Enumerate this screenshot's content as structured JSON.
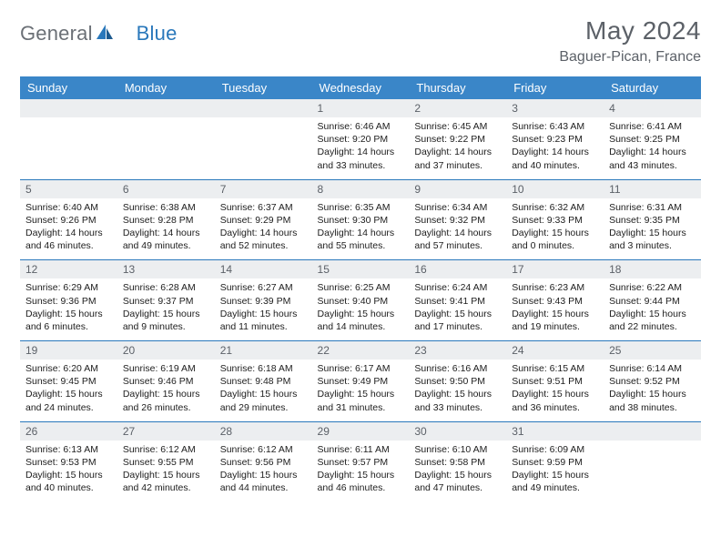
{
  "brand": {
    "part1": "General",
    "part2": "Blue"
  },
  "title": "May 2024",
  "location": "Baguer-Pican, France",
  "colors": {
    "header_bg": "#3a86c8",
    "header_text": "#ffffff",
    "daynum_bg": "#eceef0",
    "daynum_text": "#5c6168",
    "border": "#2a78bb",
    "body_text": "#202020",
    "title_text": "#5c6168",
    "logo_gray": "#6b7076",
    "logo_blue": "#2a78bb"
  },
  "typography": {
    "title_fontsize": 28,
    "location_fontsize": 16,
    "header_fontsize": 13,
    "daynum_fontsize": 12,
    "body_fontsize": 10.5
  },
  "weekdays": [
    "Sunday",
    "Monday",
    "Tuesday",
    "Wednesday",
    "Thursday",
    "Friday",
    "Saturday"
  ],
  "weeks": [
    [
      null,
      null,
      null,
      {
        "n": "1",
        "sunrise": "6:46 AM",
        "sunset": "9:20 PM",
        "dl_h": "14",
        "dl_m": "33"
      },
      {
        "n": "2",
        "sunrise": "6:45 AM",
        "sunset": "9:22 PM",
        "dl_h": "14",
        "dl_m": "37"
      },
      {
        "n": "3",
        "sunrise": "6:43 AM",
        "sunset": "9:23 PM",
        "dl_h": "14",
        "dl_m": "40"
      },
      {
        "n": "4",
        "sunrise": "6:41 AM",
        "sunset": "9:25 PM",
        "dl_h": "14",
        "dl_m": "43"
      }
    ],
    [
      {
        "n": "5",
        "sunrise": "6:40 AM",
        "sunset": "9:26 PM",
        "dl_h": "14",
        "dl_m": "46"
      },
      {
        "n": "6",
        "sunrise": "6:38 AM",
        "sunset": "9:28 PM",
        "dl_h": "14",
        "dl_m": "49"
      },
      {
        "n": "7",
        "sunrise": "6:37 AM",
        "sunset": "9:29 PM",
        "dl_h": "14",
        "dl_m": "52"
      },
      {
        "n": "8",
        "sunrise": "6:35 AM",
        "sunset": "9:30 PM",
        "dl_h": "14",
        "dl_m": "55"
      },
      {
        "n": "9",
        "sunrise": "6:34 AM",
        "sunset": "9:32 PM",
        "dl_h": "14",
        "dl_m": "57"
      },
      {
        "n": "10",
        "sunrise": "6:32 AM",
        "sunset": "9:33 PM",
        "dl_h": "15",
        "dl_m": "0"
      },
      {
        "n": "11",
        "sunrise": "6:31 AM",
        "sunset": "9:35 PM",
        "dl_h": "15",
        "dl_m": "3"
      }
    ],
    [
      {
        "n": "12",
        "sunrise": "6:29 AM",
        "sunset": "9:36 PM",
        "dl_h": "15",
        "dl_m": "6"
      },
      {
        "n": "13",
        "sunrise": "6:28 AM",
        "sunset": "9:37 PM",
        "dl_h": "15",
        "dl_m": "9"
      },
      {
        "n": "14",
        "sunrise": "6:27 AM",
        "sunset": "9:39 PM",
        "dl_h": "15",
        "dl_m": "11"
      },
      {
        "n": "15",
        "sunrise": "6:25 AM",
        "sunset": "9:40 PM",
        "dl_h": "15",
        "dl_m": "14"
      },
      {
        "n": "16",
        "sunrise": "6:24 AM",
        "sunset": "9:41 PM",
        "dl_h": "15",
        "dl_m": "17"
      },
      {
        "n": "17",
        "sunrise": "6:23 AM",
        "sunset": "9:43 PM",
        "dl_h": "15",
        "dl_m": "19"
      },
      {
        "n": "18",
        "sunrise": "6:22 AM",
        "sunset": "9:44 PM",
        "dl_h": "15",
        "dl_m": "22"
      }
    ],
    [
      {
        "n": "19",
        "sunrise": "6:20 AM",
        "sunset": "9:45 PM",
        "dl_h": "15",
        "dl_m": "24"
      },
      {
        "n": "20",
        "sunrise": "6:19 AM",
        "sunset": "9:46 PM",
        "dl_h": "15",
        "dl_m": "26"
      },
      {
        "n": "21",
        "sunrise": "6:18 AM",
        "sunset": "9:48 PM",
        "dl_h": "15",
        "dl_m": "29"
      },
      {
        "n": "22",
        "sunrise": "6:17 AM",
        "sunset": "9:49 PM",
        "dl_h": "15",
        "dl_m": "31"
      },
      {
        "n": "23",
        "sunrise": "6:16 AM",
        "sunset": "9:50 PM",
        "dl_h": "15",
        "dl_m": "33"
      },
      {
        "n": "24",
        "sunrise": "6:15 AM",
        "sunset": "9:51 PM",
        "dl_h": "15",
        "dl_m": "36"
      },
      {
        "n": "25",
        "sunrise": "6:14 AM",
        "sunset": "9:52 PM",
        "dl_h": "15",
        "dl_m": "38"
      }
    ],
    [
      {
        "n": "26",
        "sunrise": "6:13 AM",
        "sunset": "9:53 PM",
        "dl_h": "15",
        "dl_m": "40"
      },
      {
        "n": "27",
        "sunrise": "6:12 AM",
        "sunset": "9:55 PM",
        "dl_h": "15",
        "dl_m": "42"
      },
      {
        "n": "28",
        "sunrise": "6:12 AM",
        "sunset": "9:56 PM",
        "dl_h": "15",
        "dl_m": "44"
      },
      {
        "n": "29",
        "sunrise": "6:11 AM",
        "sunset": "9:57 PM",
        "dl_h": "15",
        "dl_m": "46"
      },
      {
        "n": "30",
        "sunrise": "6:10 AM",
        "sunset": "9:58 PM",
        "dl_h": "15",
        "dl_m": "47"
      },
      {
        "n": "31",
        "sunrise": "6:09 AM",
        "sunset": "9:59 PM",
        "dl_h": "15",
        "dl_m": "49"
      },
      null
    ]
  ],
  "labels": {
    "sunrise": "Sunrise:",
    "sunset": "Sunset:",
    "daylight": "Daylight:",
    "hours": "hours",
    "and": "and",
    "minutes": "minutes."
  }
}
